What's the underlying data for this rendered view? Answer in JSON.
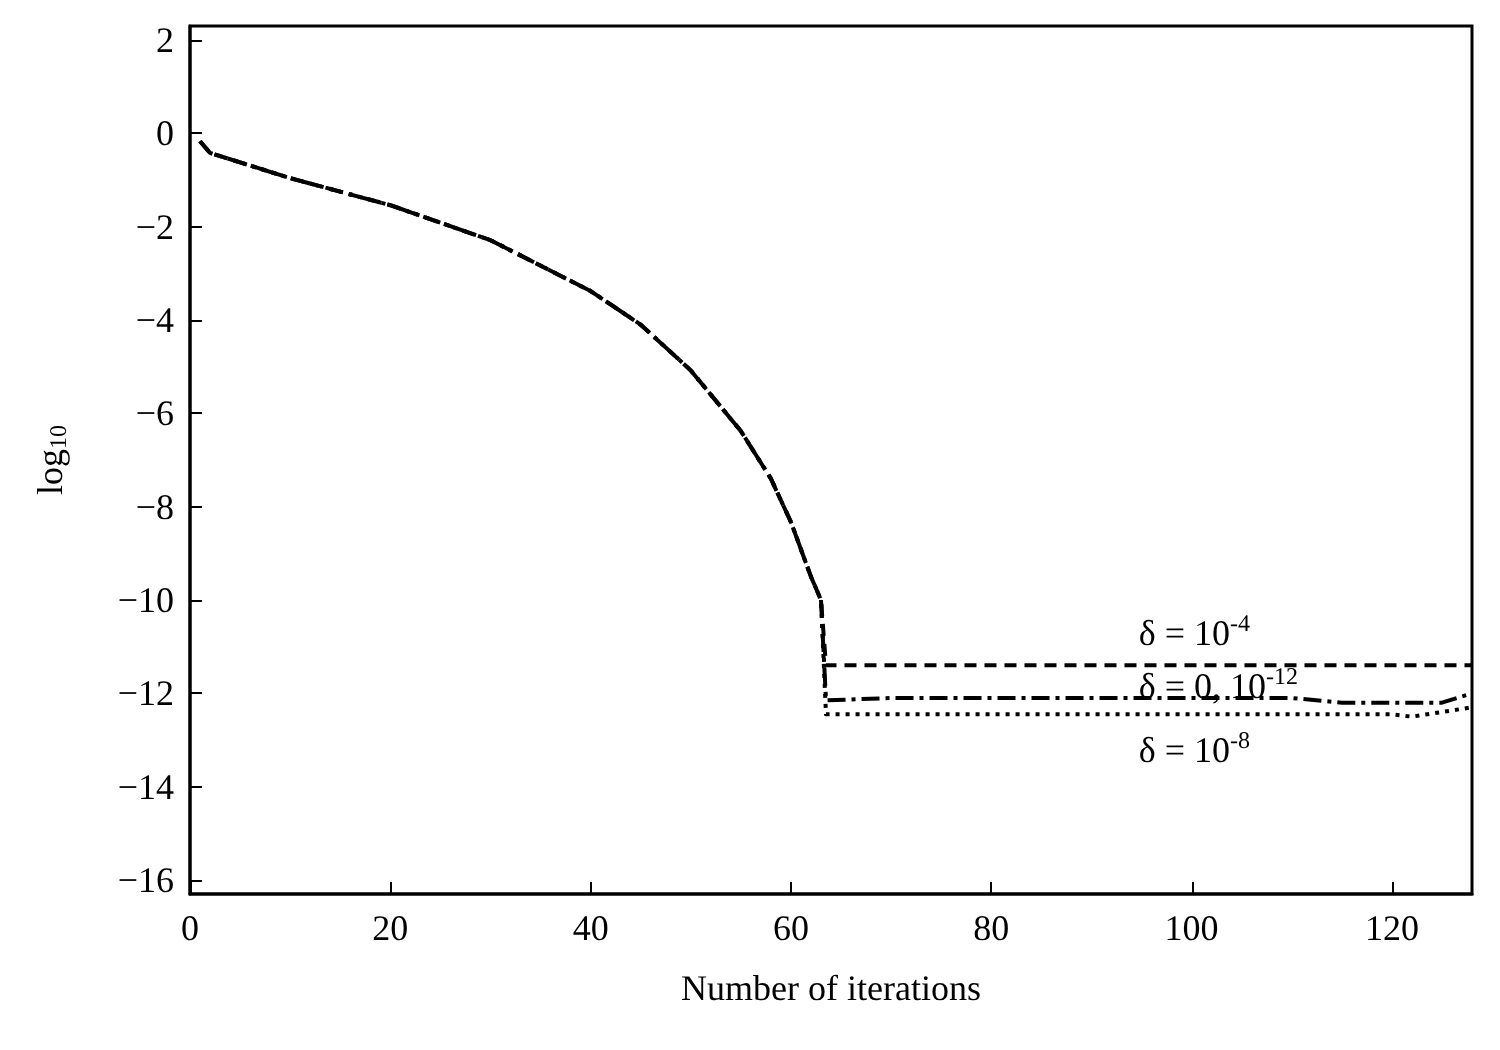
{
  "chart_data": {
    "type": "line",
    "xlabel": "Number of iterations",
    "ylabel": "log$_{10}$",
    "xlim": [
      0,
      128
    ],
    "xticks": [
      0,
      20,
      40,
      60,
      80,
      100,
      120
    ],
    "ylim": [
      -16.3,
      2.3
    ],
    "yticks": [
      -16,
      -14,
      -12,
      -10,
      -8,
      -6,
      -4,
      -2,
      0,
      2
    ],
    "marker": "none",
    "series": [
      {
        "name": "δ = 10$^{-4}$",
        "color": "#000000",
        "line_style": "dashed",
        "x": [
          1,
          2,
          10,
          20,
          30,
          40,
          45,
          50,
          55,
          58,
          60,
          62,
          63,
          63.5,
          70,
          90,
          110,
          128
        ],
        "values": [
          -0.17,
          -0.42,
          -0.96,
          -1.54,
          -2.29,
          -3.38,
          -4.1,
          -5.08,
          -6.38,
          -7.4,
          -8.33,
          -9.5,
          -10.0,
          -11.4,
          -11.4,
          -11.4,
          -11.4,
          -11.4
        ]
      },
      {
        "name": "δ = 0, 10$^{-12}$",
        "color": "#000000",
        "line_style": "dashdot",
        "x": [
          1,
          2,
          10,
          20,
          30,
          40,
          45,
          50,
          55,
          58,
          60,
          62,
          63,
          63.5,
          70,
          90,
          110,
          115,
          125,
          128
        ],
        "values": [
          -0.17,
          -0.42,
          -0.96,
          -1.54,
          -2.29,
          -3.38,
          -4.1,
          -5.08,
          -6.38,
          -7.4,
          -8.33,
          -9.5,
          -10.0,
          -12.15,
          -12.1,
          -12.1,
          -12.1,
          -12.2,
          -12.2,
          -12.0
        ]
      },
      {
        "name": "δ = 10$^{-8}$",
        "color": "#000000",
        "line_style": "dotted",
        "x": [
          1,
          2,
          10,
          20,
          30,
          40,
          45,
          50,
          55,
          58,
          60,
          62,
          63,
          63.5,
          70,
          90,
          110,
          120,
          122,
          128
        ],
        "values": [
          -0.17,
          -0.42,
          -0.96,
          -1.54,
          -2.29,
          -3.38,
          -4.1,
          -5.08,
          -6.38,
          -7.4,
          -8.33,
          -9.5,
          -10.0,
          -12.45,
          -12.45,
          -12.45,
          -12.45,
          -12.45,
          -12.5,
          -12.3
        ]
      }
    ]
  }
}
